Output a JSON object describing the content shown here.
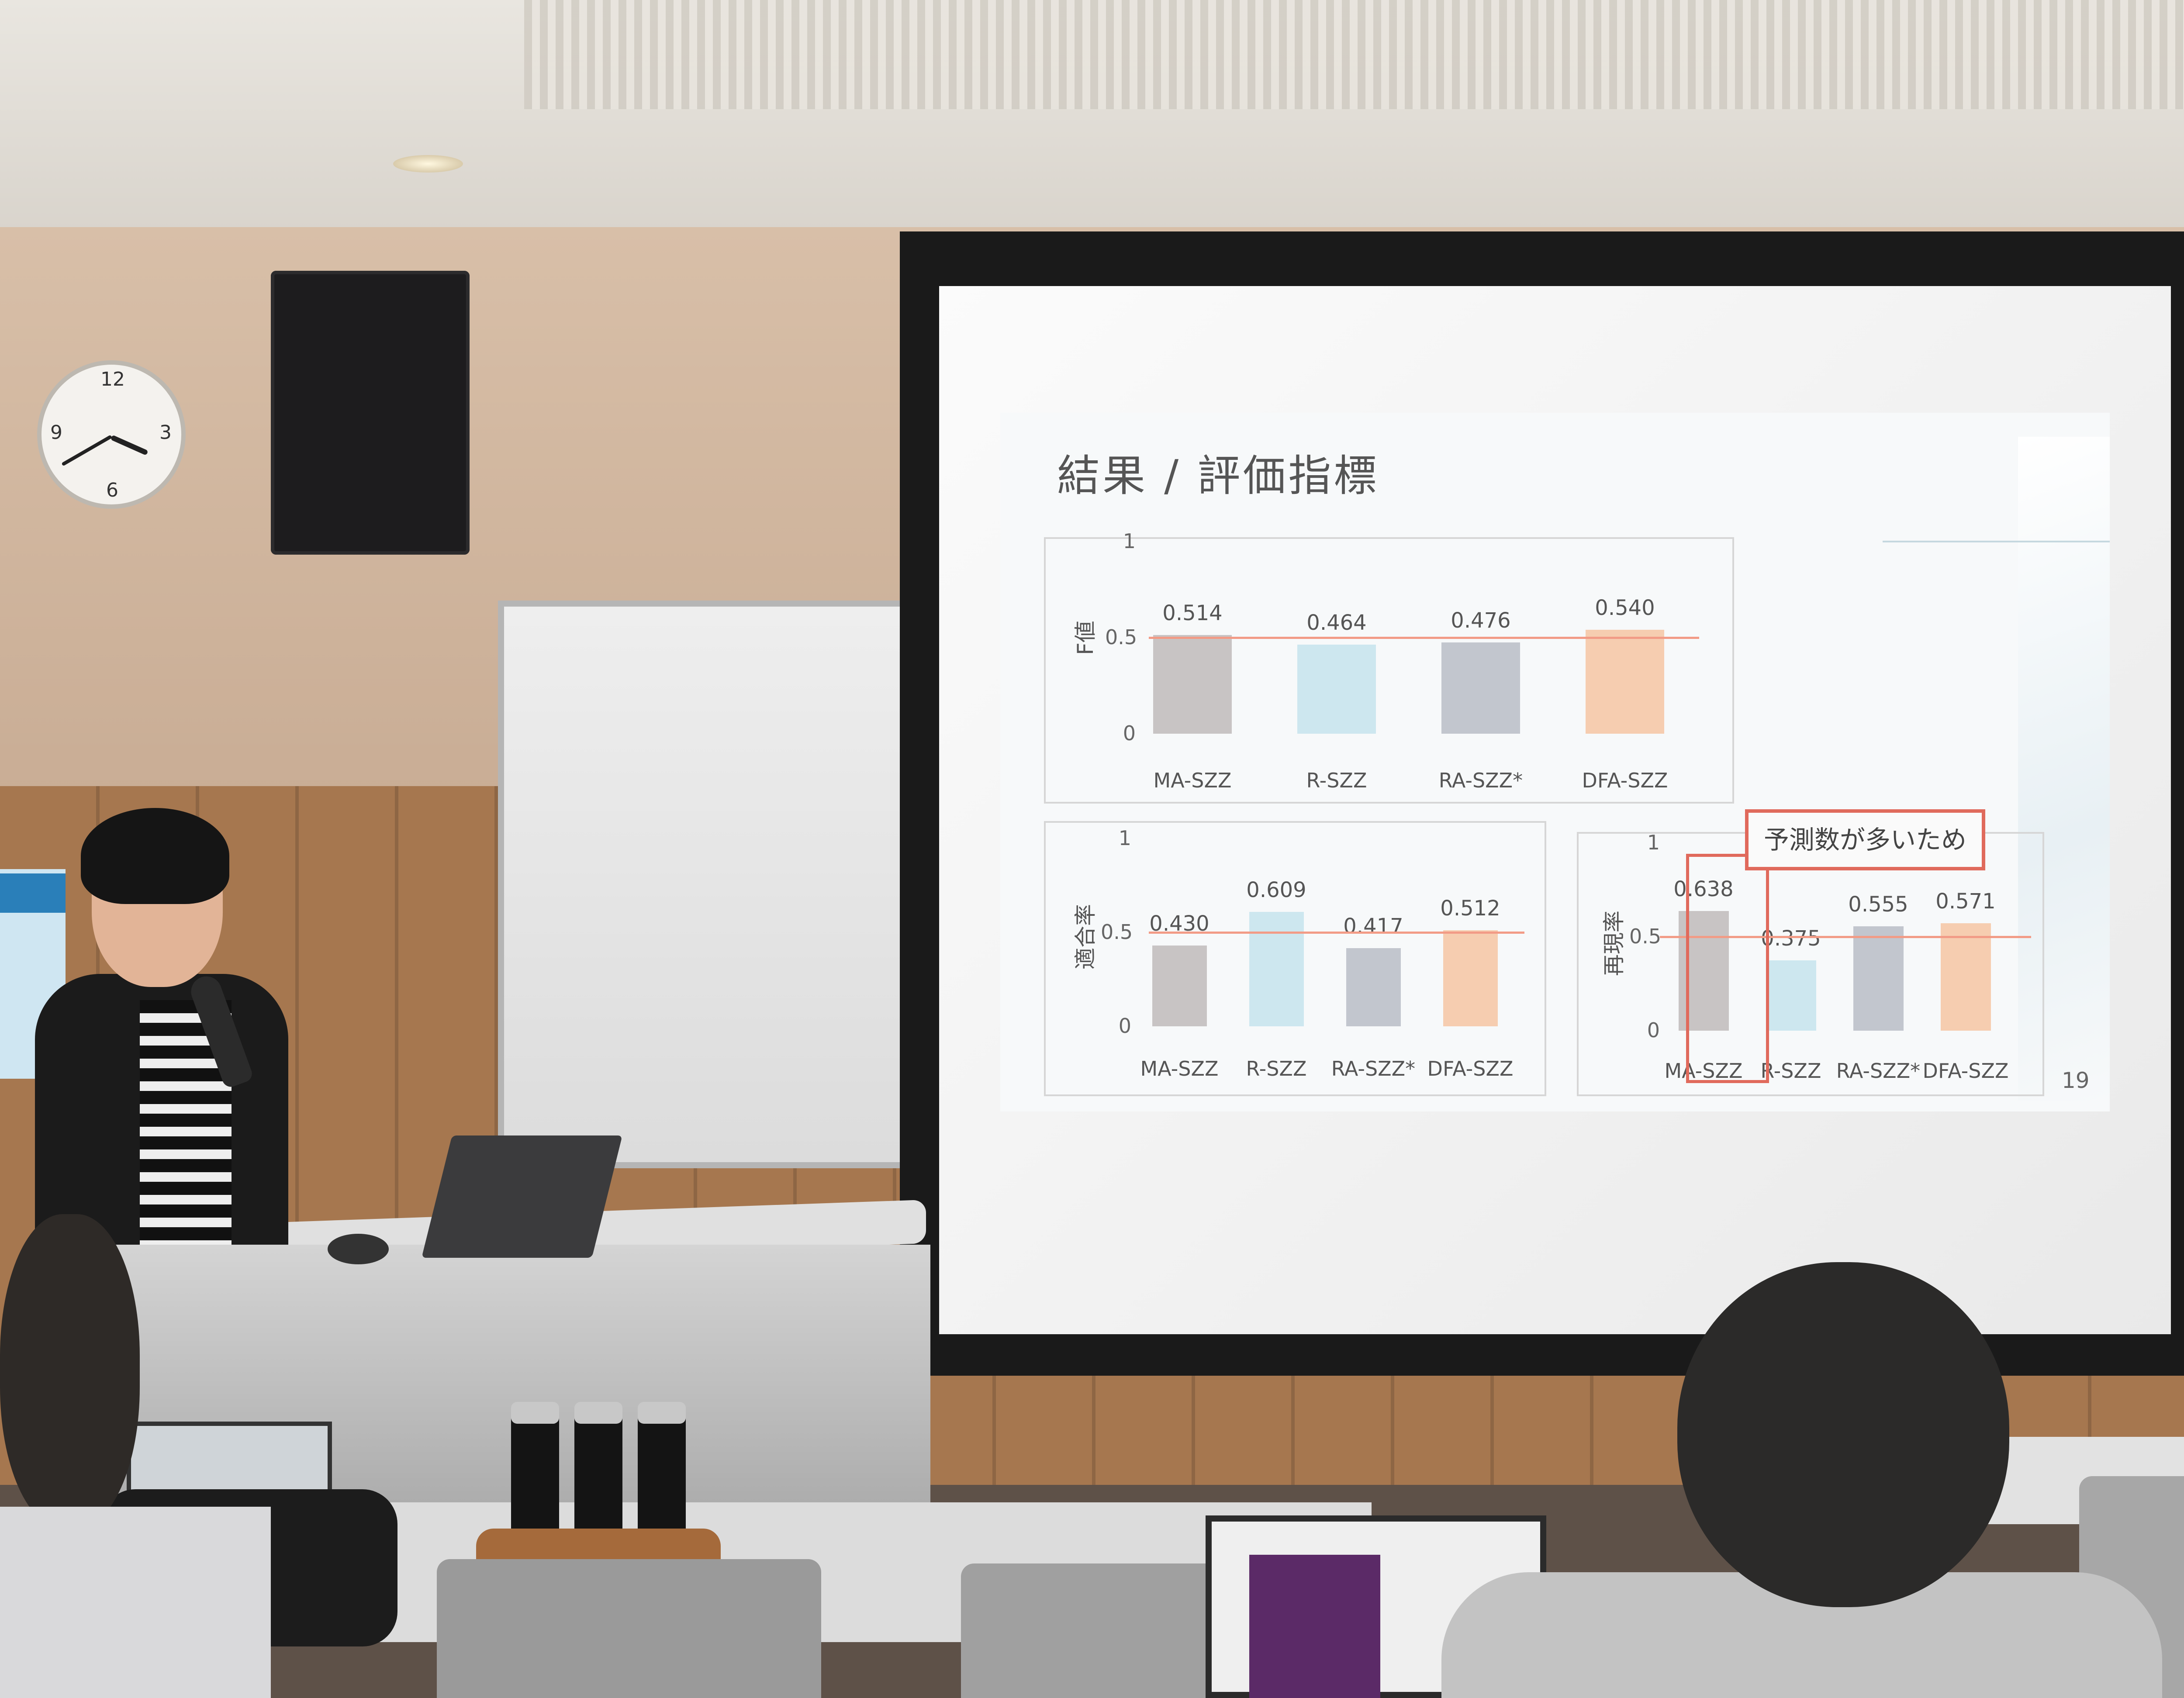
{
  "slide": {
    "title": "結果 / 評価指標",
    "callout": "予測数が多いため",
    "page_number": "19"
  },
  "chart_data": [
    {
      "type": "bar",
      "ylabel": "F値",
      "categories": [
        "MA-SZZ",
        "R-SZZ",
        "RA-SZZ*",
        "DFA-SZZ"
      ],
      "values": [
        0.514,
        0.464,
        0.476,
        0.54
      ],
      "value_labels": [
        "0.514",
        "0.464",
        "0.476",
        "0.540"
      ],
      "yticks": [
        "1",
        "0.5",
        "0"
      ],
      "ylim": [
        0,
        1
      ],
      "reference_line": 0.5,
      "colors": [
        "#c8c4c4",
        "#cde7ef",
        "#c2c6ce",
        "#f6cdb0"
      ]
    },
    {
      "type": "bar",
      "ylabel": "適合率",
      "categories": [
        "MA-SZZ",
        "R-SZZ",
        "RA-SZZ*",
        "DFA-SZZ"
      ],
      "values": [
        0.43,
        0.609,
        0.417,
        0.512
      ],
      "value_labels": [
        "0.430",
        "0.609",
        "0.417",
        "0.512"
      ],
      "yticks": [
        "1",
        "0.5",
        "0"
      ],
      "ylim": [
        0,
        1
      ],
      "reference_line": 0.5,
      "colors": [
        "#c8c4c4",
        "#cde7ef",
        "#c2c6ce",
        "#f6cdb0"
      ]
    },
    {
      "type": "bar",
      "ylabel": "再現率",
      "categories": [
        "MA-SZZ",
        "R-SZZ",
        "RA-SZZ*",
        "DFA-SZZ"
      ],
      "values": [
        0.638,
        0.375,
        0.555,
        0.571
      ],
      "value_labels": [
        "0.638",
        "0.375",
        "0.555",
        "0.571"
      ],
      "yticks": [
        "1",
        "0.5",
        "0"
      ],
      "ylim": [
        0,
        1
      ],
      "reference_line": 0.5,
      "colors": [
        "#c8c4c4",
        "#cde7ef",
        "#c2c6ce",
        "#f6cdb0"
      ]
    }
  ],
  "clock": {
    "numerals": [
      "12",
      "3",
      "6",
      "9"
    ],
    "hour": 3.8,
    "minute": 40
  },
  "colors": {
    "reference_line": "#f29b86",
    "callout_border": "#e06a5c"
  }
}
